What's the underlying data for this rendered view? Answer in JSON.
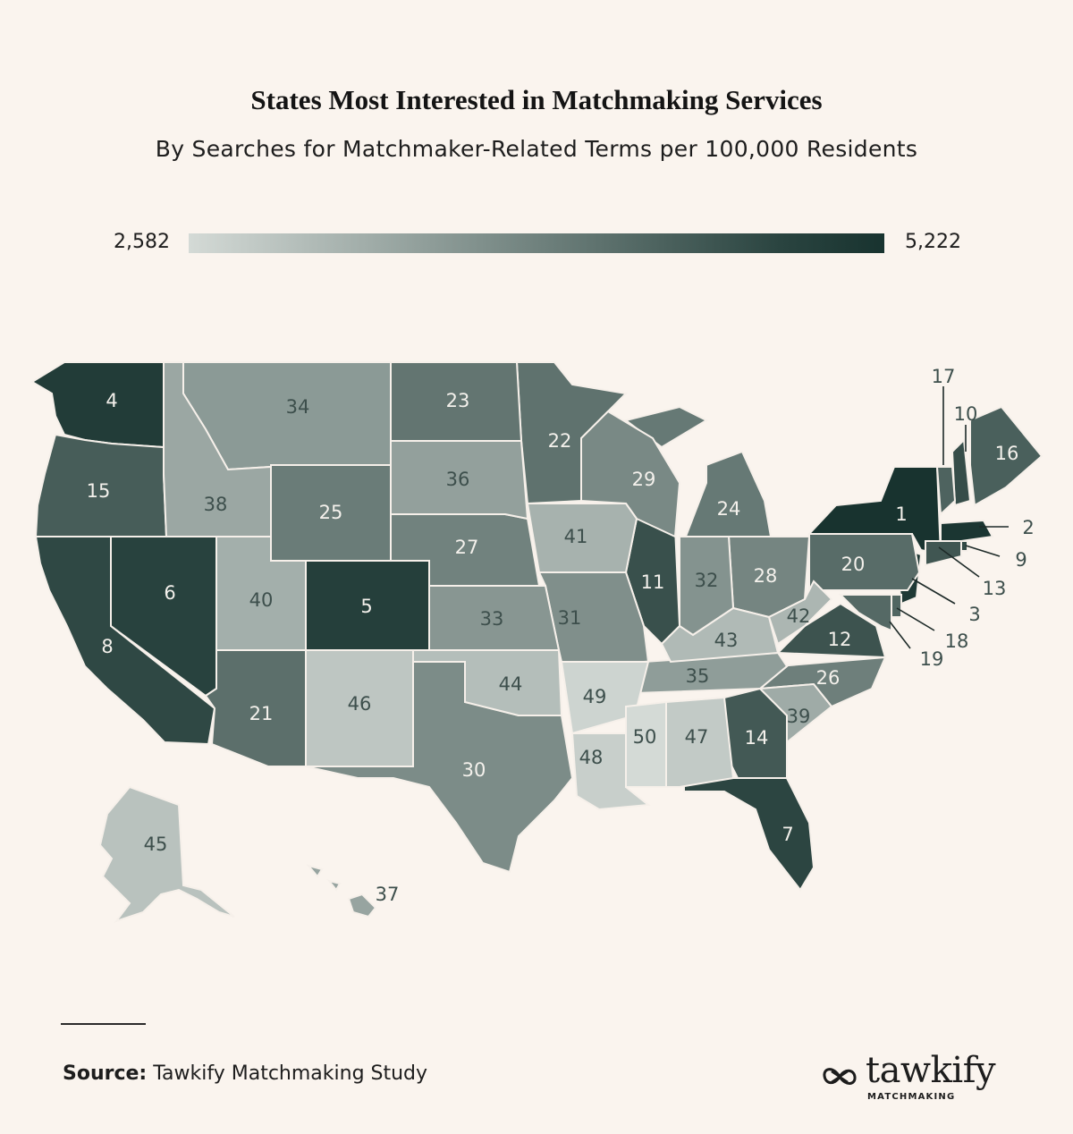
{
  "header": {
    "title": "States Most Interested in Matchmaking Services",
    "subtitle": "By Searches for Matchmaker-Related Terms per 100,000 Residents"
  },
  "legend": {
    "min_label": "2,582",
    "max_label": "5,222",
    "color_low": "#d4dad6",
    "color_high": "#18332f"
  },
  "map": {
    "type": "choropleth",
    "metric": "rank",
    "states": [
      {
        "state": "NY",
        "rank": 1
      },
      {
        "state": "MA",
        "rank": 2
      },
      {
        "state": "NJ",
        "rank": 3
      },
      {
        "state": "WA",
        "rank": 4
      },
      {
        "state": "CO",
        "rank": 5
      },
      {
        "state": "NV",
        "rank": 6
      },
      {
        "state": "FL",
        "rank": 7
      },
      {
        "state": "CA",
        "rank": 8
      },
      {
        "state": "RI",
        "rank": 9
      },
      {
        "state": "NH",
        "rank": 10
      },
      {
        "state": "IL",
        "rank": 11
      },
      {
        "state": "VA",
        "rank": 12
      },
      {
        "state": "CT",
        "rank": 13
      },
      {
        "state": "GA",
        "rank": 14
      },
      {
        "state": "OR",
        "rank": 15
      },
      {
        "state": "ME",
        "rank": 16
      },
      {
        "state": "VT",
        "rank": 17
      },
      {
        "state": "DE",
        "rank": 18
      },
      {
        "state": "MD",
        "rank": 19
      },
      {
        "state": "PA",
        "rank": 20
      },
      {
        "state": "AZ",
        "rank": 21
      },
      {
        "state": "MN",
        "rank": 22
      },
      {
        "state": "ND",
        "rank": 23
      },
      {
        "state": "MI",
        "rank": 24
      },
      {
        "state": "WY",
        "rank": 25
      },
      {
        "state": "NC",
        "rank": 26
      },
      {
        "state": "NE",
        "rank": 27
      },
      {
        "state": "OH",
        "rank": 28
      },
      {
        "state": "WI",
        "rank": 29
      },
      {
        "state": "TX",
        "rank": 30
      },
      {
        "state": "MO",
        "rank": 31
      },
      {
        "state": "IN",
        "rank": 32
      },
      {
        "state": "KS",
        "rank": 33
      },
      {
        "state": "MT",
        "rank": 34
      },
      {
        "state": "TN",
        "rank": 35
      },
      {
        "state": "SD",
        "rank": 36
      },
      {
        "state": "HI",
        "rank": 37
      },
      {
        "state": "ID",
        "rank": 38
      },
      {
        "state": "SC",
        "rank": 39
      },
      {
        "state": "UT",
        "rank": 40
      },
      {
        "state": "IA",
        "rank": 41
      },
      {
        "state": "WV",
        "rank": 42
      },
      {
        "state": "KY",
        "rank": 43
      },
      {
        "state": "OK",
        "rank": 44
      },
      {
        "state": "AK",
        "rank": 45
      },
      {
        "state": "NM",
        "rank": 46
      },
      {
        "state": "AL",
        "rank": 47
      },
      {
        "state": "LA",
        "rank": 48
      },
      {
        "state": "AR",
        "rank": 49
      },
      {
        "state": "MS",
        "rank": 50
      }
    ]
  },
  "footer": {
    "source_label": "Source:",
    "source_text": "Tawkify Matchmaking Study"
  },
  "brand": {
    "name": "tawkify",
    "sub": "MATCHMAKING"
  }
}
